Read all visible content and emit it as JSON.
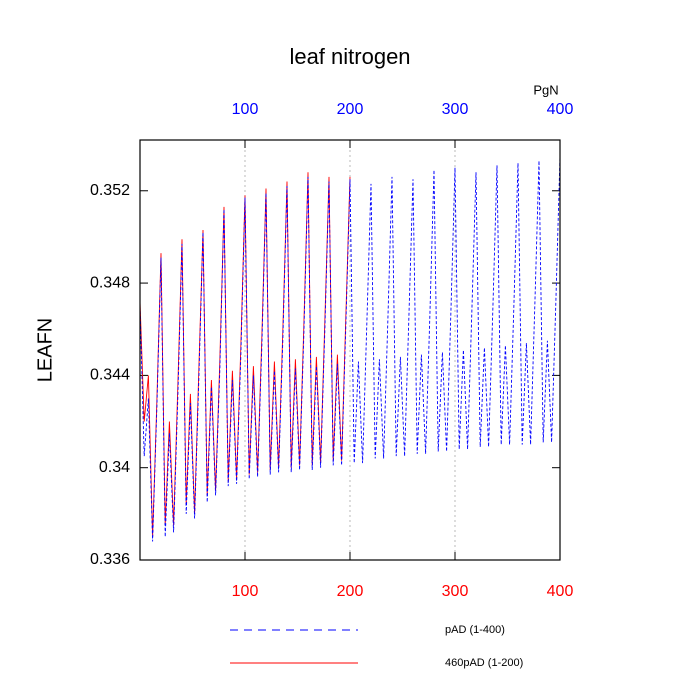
{
  "chart_data": {
    "type": "line",
    "title": "leaf nitrogen",
    "ylabel": "LEAFN",
    "x2label": "PgN",
    "xlim": [
      0,
      400
    ],
    "xticks": [
      100,
      200,
      300,
      400
    ],
    "x2ticks": [
      100,
      200,
      300,
      400
    ],
    "xtick_color": "#ff0000",
    "x2tick_color": "#0000ff",
    "ylim": [
      0.336,
      0.3542
    ],
    "yticks": [
      0.336,
      0.34,
      0.344,
      0.348,
      0.352
    ],
    "xgrid": true,
    "series": [
      {
        "name": "pAD (1-400)",
        "color": "#0000ff",
        "dashed": true,
        "x": [
          0,
          4,
          8,
          12,
          16,
          20,
          24,
          28,
          32,
          36,
          40,
          44,
          48,
          52,
          56,
          60,
          64,
          68,
          72,
          76,
          80,
          84,
          88,
          92,
          96,
          100,
          104,
          108,
          112,
          116,
          120,
          124,
          128,
          132,
          136,
          140,
          144,
          148,
          152,
          156,
          160,
          164,
          168,
          172,
          176,
          180,
          184,
          188,
          192,
          196,
          200,
          204,
          208,
          212,
          216,
          220,
          224,
          228,
          232,
          236,
          240,
          244,
          248,
          252,
          256,
          260,
          264,
          268,
          272,
          276,
          280,
          284,
          288,
          292,
          296,
          300,
          304,
          308,
          312,
          316,
          320,
          324,
          328,
          332,
          336,
          340,
          344,
          348,
          352,
          356,
          360,
          364,
          368,
          372,
          376,
          380,
          384,
          388,
          392,
          396,
          400
        ],
        "values": [
          0.347,
          0.3405,
          0.343,
          0.3368,
          0.3425,
          0.3491,
          0.337,
          0.3415,
          0.3372,
          0.343,
          0.3497,
          0.338,
          0.3428,
          0.3378,
          0.3438,
          0.3502,
          0.3385,
          0.3435,
          0.3388,
          0.3442,
          0.3512,
          0.3392,
          0.3438,
          0.3393,
          0.3448,
          0.3517,
          0.3395,
          0.344,
          0.3396,
          0.3452,
          0.3519,
          0.3397,
          0.3442,
          0.3398,
          0.3455,
          0.3522,
          0.3398,
          0.3443,
          0.3399,
          0.3457,
          0.3526,
          0.3399,
          0.3444,
          0.34,
          0.3459,
          0.3524,
          0.3401,
          0.3445,
          0.3401,
          0.3461,
          0.3525,
          0.3402,
          0.3446,
          0.3402,
          0.3462,
          0.3523,
          0.3404,
          0.3447,
          0.3404,
          0.3463,
          0.3526,
          0.3405,
          0.3448,
          0.3405,
          0.3464,
          0.3525,
          0.3406,
          0.3449,
          0.3406,
          0.3465,
          0.3529,
          0.3407,
          0.345,
          0.3407,
          0.3466,
          0.353,
          0.3408,
          0.3451,
          0.3408,
          0.3467,
          0.3528,
          0.3409,
          0.3452,
          0.3409,
          0.3468,
          0.3531,
          0.341,
          0.3453,
          0.341,
          0.3469,
          0.3532,
          0.341,
          0.3454,
          0.341,
          0.347,
          0.3533,
          0.3411,
          0.3455,
          0.3411,
          0.3471,
          0.3535
        ]
      },
      {
        "name": "460pAD (1-200)",
        "color": "#ff0000",
        "dashed": false,
        "x": [
          0,
          4,
          8,
          12,
          16,
          20,
          24,
          28,
          32,
          36,
          40,
          44,
          48,
          52,
          56,
          60,
          64,
          68,
          72,
          76,
          80,
          84,
          88,
          92,
          96,
          100,
          104,
          108,
          112,
          116,
          120,
          124,
          128,
          132,
          136,
          140,
          144,
          148,
          152,
          156,
          160,
          164,
          168,
          172,
          176,
          180,
          184,
          188,
          192,
          196,
          200
        ],
        "values": [
          0.3472,
          0.342,
          0.344,
          0.337,
          0.3428,
          0.3493,
          0.3375,
          0.342,
          0.3375,
          0.3435,
          0.3499,
          0.3384,
          0.3432,
          0.338,
          0.3442,
          0.3503,
          0.3388,
          0.3438,
          0.339,
          0.3446,
          0.3513,
          0.3394,
          0.3442,
          0.3395,
          0.3452,
          0.3518,
          0.3397,
          0.3444,
          0.3398,
          0.3456,
          0.3521,
          0.3399,
          0.3446,
          0.34,
          0.3459,
          0.3524,
          0.34,
          0.3447,
          0.3401,
          0.3461,
          0.3528,
          0.3401,
          0.3448,
          0.3402,
          0.3463,
          0.3526,
          0.3403,
          0.3449,
          0.3403,
          0.3465,
          0.3526
        ]
      }
    ]
  }
}
